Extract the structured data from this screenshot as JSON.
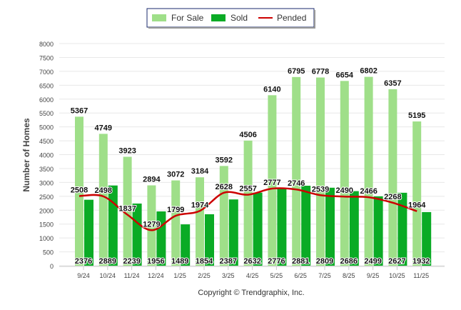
{
  "chart_data": {
    "type": "bar",
    "title": "",
    "xlabel": "",
    "ylabel": "Number of Homes",
    "ylim": [
      0,
      8000
    ],
    "yticks": [
      0,
      500,
      1000,
      1500,
      2000,
      2500,
      3000,
      3500,
      4000,
      4500,
      5000,
      5500,
      6000,
      6500,
      7000,
      7500,
      8000
    ],
    "grid": true,
    "legend_position": "top-center",
    "categories": [
      "9/24",
      "10/24",
      "11/24",
      "12/24",
      "1/25",
      "2/25",
      "3/25",
      "4/25",
      "5/25",
      "6/25",
      "7/25",
      "8/25",
      "9/25",
      "10/25",
      "11/25"
    ],
    "series": [
      {
        "name": "For Sale",
        "type": "bar",
        "color": "#9fdf89",
        "values": [
          5367,
          4749,
          3923,
          2894,
          3072,
          3184,
          3592,
          4506,
          6140,
          6795,
          6778,
          6654,
          6802,
          6357,
          5195
        ]
      },
      {
        "name": "Sold",
        "type": "bar",
        "color": "#0aab25",
        "values": [
          2376,
          2889,
          2239,
          1956,
          1489,
          1854,
          2387,
          2632,
          2776,
          2881,
          2809,
          2686,
          2499,
          2627,
          1932
        ]
      },
      {
        "name": "Pended",
        "type": "line",
        "color": "#cc0000",
        "values": [
          2508,
          2498,
          1837,
          1279,
          1799,
          1974,
          2628,
          2557,
          2777,
          2746,
          2539,
          2490,
          2466,
          2268,
          1964
        ]
      }
    ]
  },
  "footer": {
    "copyright": "Copyright © Trendgraphix, Inc."
  }
}
